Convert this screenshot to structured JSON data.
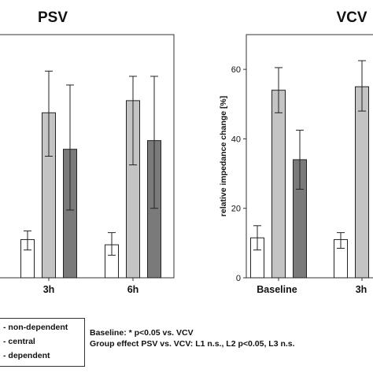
{
  "chart_data": [
    {
      "type": "bar",
      "title": "PSV",
      "categories": [
        "3h",
        "6h"
      ],
      "ylabel": "",
      "ylim": [
        0,
        70
      ],
      "grid": false,
      "series": [
        {
          "name": "non-dependent",
          "values": [
            11,
            9.5
          ],
          "error": [
            [
              8,
              13.5
            ],
            [
              6.5,
              13
            ]
          ],
          "color": "#ffffff"
        },
        {
          "name": "central",
          "values": [
            47.5,
            51
          ],
          "error": [
            [
              35,
              59.5
            ],
            [
              32.5,
              58
            ]
          ],
          "color": "#c4c4c4"
        },
        {
          "name": "dependent",
          "values": [
            37,
            39.5
          ],
          "error": [
            [
              19.5,
              55.5
            ],
            [
              20,
              58
            ]
          ],
          "color": "#7a7a7a"
        }
      ]
    },
    {
      "type": "bar",
      "title": "VCV",
      "categories": [
        "Baseline",
        "3h"
      ],
      "ylabel": "relative impedance change [%]",
      "yticks": [
        "0",
        "20",
        "40",
        "60"
      ],
      "ylim": [
        0,
        70
      ],
      "grid": false,
      "series": [
        {
          "name": "non-dependent",
          "values": [
            11.5,
            11
          ],
          "error": [
            [
              8,
              15
            ],
            [
              8.5,
              13
            ]
          ],
          "color": "#ffffff"
        },
        {
          "name": "central",
          "values": [
            54,
            55
          ],
          "error": [
            [
              47.5,
              60.5
            ],
            [
              48,
              62.5
            ]
          ],
          "color": "#c4c4c4"
        },
        {
          "name": "dependent",
          "values": [
            34,
            null
          ],
          "error": [
            [
              25.5,
              42.5
            ],
            null
          ],
          "color": "#7a7a7a"
        }
      ]
    }
  ],
  "legend": {
    "items": [
      {
        "label": "- non-dependent",
        "color": "#ffffff"
      },
      {
        "label": "- central",
        "color": "#c4c4c4"
      },
      {
        "label": "- dependent",
        "color": "#7a7a7a"
      }
    ]
  },
  "notes": {
    "line1": "Baseline: * p<0.05 vs. VCV",
    "line2": "Group effect PSV vs. VCV: L1 n.s., L2 p<0.05, L3 n.s."
  }
}
